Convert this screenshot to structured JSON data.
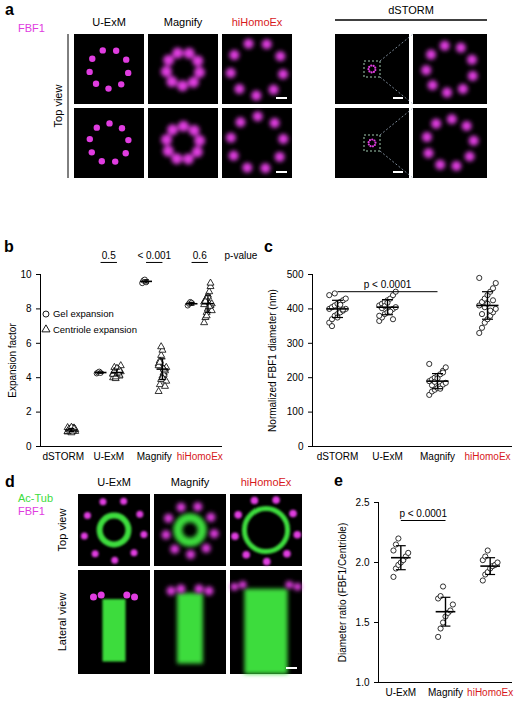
{
  "image_panels": [
    {
      "panel": "a",
      "channels": [
        {
          "name": "FBF1",
          "color": "#e03ce0"
        }
      ],
      "columns": [
        "U-ExM",
        "Magnify",
        "hiHomoEx"
      ],
      "zoom_column": "dSTORM",
      "rows": [
        "Top view"
      ]
    },
    {
      "panel": "d",
      "channels": [
        {
          "name": "Ac-Tub",
          "color": "#3ddc3d"
        },
        {
          "name": "FBF1",
          "color": "#e03ce0"
        }
      ],
      "columns": [
        "U-ExM",
        "Magnify",
        "hiHomoEx"
      ],
      "rows": [
        "Top view",
        "Lateral view"
      ]
    }
  ],
  "chart_data": [
    {
      "type": "scatter",
      "panel": "b",
      "y_label": "Expansion factor",
      "categories": [
        "dSTORM",
        "U-ExM",
        "Magnify",
        "hiHomoEx"
      ],
      "ylim": [
        0,
        10
      ],
      "yticks": [
        0,
        2,
        4,
        6,
        8,
        10
      ],
      "series": [
        {
          "name": "Gel expansion",
          "marker": "circle",
          "color": "#000000",
          "values": [
            null,
            [
              4.25,
              4.3,
              4.35,
              4.28
            ],
            [
              9.5,
              9.65,
              9.7,
              9.55
            ],
            [
              8.2,
              8.3,
              8.4,
              8.35
            ]
          ],
          "error_bars": {
            "mean": [
              null,
              4.3,
              9.6,
              8.3
            ],
            "sd": [
              null,
              0.04,
              0.09,
              0.08
            ]
          }
        },
        {
          "name": "Centriole expansion",
          "marker": "triangle",
          "color": "#000000",
          "values": [
            [
              0.85,
              0.9,
              0.95,
              1.0,
              1.05,
              0.92,
              0.88,
              1.1,
              0.97,
              1.02,
              0.8,
              0.93,
              1.08,
              0.99,
              0.87,
              1.0,
              0.95,
              1.12,
              0.9,
              1.03
            ],
            [
              4.0,
              4.2,
              4.3,
              4.4,
              4.5,
              4.1,
              4.35,
              4.25,
              4.6,
              3.95,
              4.45,
              4.3,
              4.15,
              4.7,
              4.2,
              4.38,
              4.05,
              4.55,
              4.28,
              4.42
            ],
            [
              3.2,
              3.6,
              3.9,
              4.1,
              4.3,
              4.5,
              4.6,
              4.8,
              5.0,
              5.3,
              5.6,
              4.2,
              4.4,
              3.8,
              4.7,
              4.9,
              5.8,
              4.0,
              4.5,
              3.5
            ],
            [
              7.2,
              7.5,
              7.8,
              8.0,
              8.1,
              8.2,
              8.3,
              8.4,
              8.5,
              8.6,
              8.8,
              9.0,
              9.3,
              7.9,
              8.25,
              8.45,
              7.6,
              8.7,
              8.15,
              9.5
            ]
          ],
          "error_bars": {
            "mean": [
              0.96,
              4.3,
              4.5,
              8.3
            ],
            "sd": [
              0.09,
              0.2,
              0.6,
              0.5
            ]
          }
        }
      ],
      "annotations": [
        {
          "text": "0.5",
          "category": "U-ExM"
        },
        {
          "text": "< 0.001",
          "category": "Magnify"
        },
        {
          "text": "0.6",
          "category": "hiHomoEx"
        },
        {
          "text": "p-value"
        }
      ]
    },
    {
      "type": "scatter",
      "panel": "c",
      "y_label": "Normalized FBF1 diameter (nm)",
      "categories": [
        "dSTORM",
        "U-ExM",
        "Magnify",
        "hiHomoEx"
      ],
      "ylim": [
        0,
        500
      ],
      "yticks": [
        0,
        100,
        200,
        300,
        400,
        500
      ],
      "series": [
        {
          "name": "FBF1 diameter",
          "marker": "circle",
          "color": "#000000",
          "values": [
            [
              360,
              370,
              380,
              385,
              390,
              395,
              400,
              400,
              405,
              410,
              415,
              420,
              425,
              430,
              440,
              350,
              445,
              375,
              412,
              398
            ],
            [
              365,
              375,
              385,
              390,
              395,
              400,
              405,
              410,
              415,
              420,
              425,
              430,
              440,
              450,
              380,
              402,
              408,
              418,
              392,
              370
            ],
            [
              150,
              160,
              165,
              170,
              175,
              180,
              185,
              190,
              195,
              200,
              205,
              210,
              220,
              230,
              240,
              178,
              188,
              198,
              168,
              215
            ],
            [
              330,
              345,
              360,
              370,
              380,
              390,
              400,
              410,
              420,
              430,
              440,
              450,
              460,
              475,
              490,
              385,
              405,
              415,
              395,
              425
            ]
          ],
          "error_bars": {
            "mean": [
              400,
              405,
              190,
              410
            ],
            "sd": [
              25,
              22,
              22,
              40
            ]
          }
        }
      ],
      "annotations": [
        {
          "text": "p < 0.0001",
          "from": "dSTORM",
          "to": "Magnify"
        }
      ]
    },
    {
      "type": "scatter",
      "panel": "e",
      "y_label": "Diameter ratio (FBF1/Centriole)",
      "categories": [
        "U-ExM",
        "Magnify",
        "hiHomoEx"
      ],
      "ylim": [
        1.0,
        2.5
      ],
      "yticks": [
        {
          "value": 1.0,
          "label": "1.0"
        },
        {
          "value": 1.5,
          "label": "1.5"
        },
        {
          "value": 2.0,
          "label": "2.0"
        },
        {
          "value": 2.5,
          "label": "2.5"
        }
      ],
      "series": [
        {
          "name": "Diameter ratio",
          "marker": "circle",
          "color": "#000000",
          "values": [
            [
              1.88,
              1.95,
              1.98,
              2.0,
              2.02,
              2.05,
              2.08,
              2.1,
              2.15,
              2.2
            ],
            [
              1.38,
              1.45,
              1.5,
              1.55,
              1.58,
              1.6,
              1.65,
              1.7,
              1.72,
              1.8
            ],
            [
              1.85,
              1.9,
              1.92,
              1.95,
              1.97,
              1.98,
              2.0,
              2.02,
              2.05,
              2.1
            ]
          ],
          "error_bars": {
            "mean": [
              2.04,
              1.59,
              1.97
            ],
            "sd": [
              0.1,
              0.12,
              0.07
            ]
          }
        }
      ],
      "annotations": [
        {
          "text": "p < 0.0001",
          "from": "U-ExM",
          "to": "Magnify"
        }
      ]
    }
  ]
}
